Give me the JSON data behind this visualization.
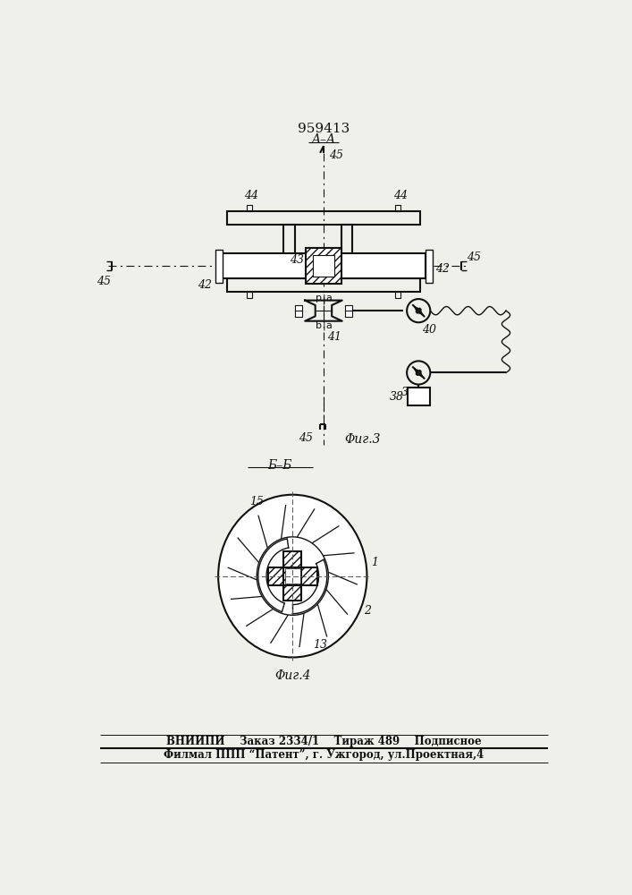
{
  "title": "959413",
  "fig3_label": "Φиг.3",
  "fig4_label": "Φиг.4",
  "section_aa": "A–A",
  "section_bb": "Б–Б",
  "footer_line1": "ВНИИПИ    Заказ 2334/1    Тираж 489    Подписное",
  "footer_line2": "Филмал ППП “Патент”, г. Ужгород, ул.Проектная,4",
  "bg_color": "#f0f0eb",
  "line_color": "#111111"
}
